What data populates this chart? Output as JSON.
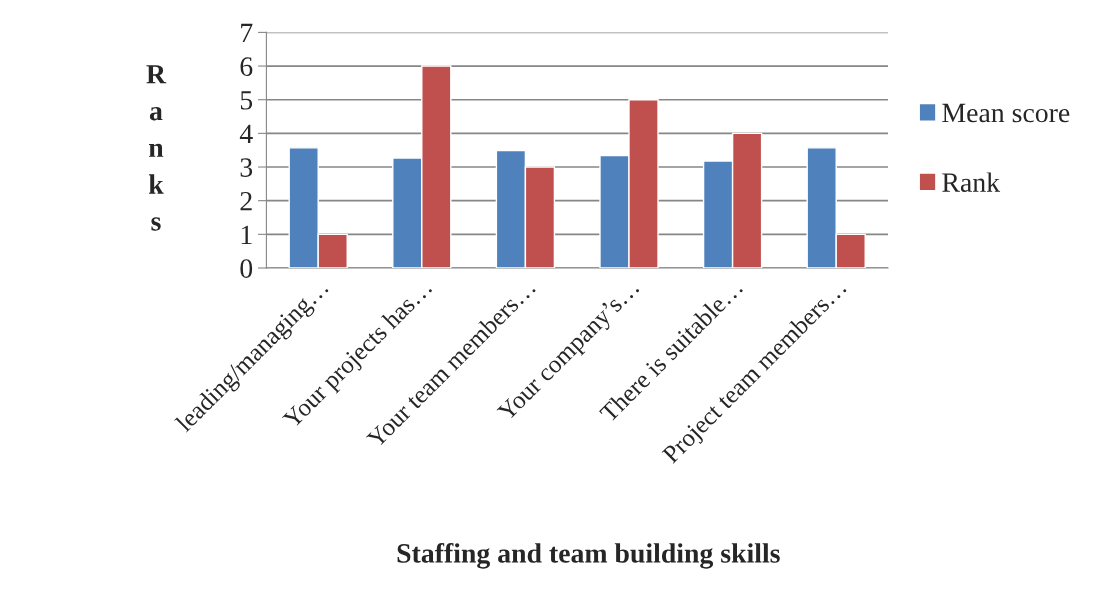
{
  "chart_data": {
    "type": "bar",
    "xlabel": "Staffing and team building skills",
    "ylabel": "Ranks",
    "categories": [
      "leading/managing…",
      "Your projects has…",
      "Your team members…",
      "Your company’s…",
      "There is suitable…",
      "Project team members…"
    ],
    "series": [
      {
        "name": "Mean score",
        "color": "#4f81bd",
        "values": [
          3.57,
          3.27,
          3.49,
          3.34,
          3.18,
          3.57
        ]
      },
      {
        "name": "Rank",
        "color": "#c0504d",
        "values": [
          1,
          6,
          3,
          5,
          4,
          1
        ]
      }
    ],
    "ylim": [
      0,
      7
    ],
    "yticks": [
      0,
      1,
      2,
      3,
      4,
      5,
      6,
      7
    ],
    "grid": "y",
    "legend": "right"
  }
}
